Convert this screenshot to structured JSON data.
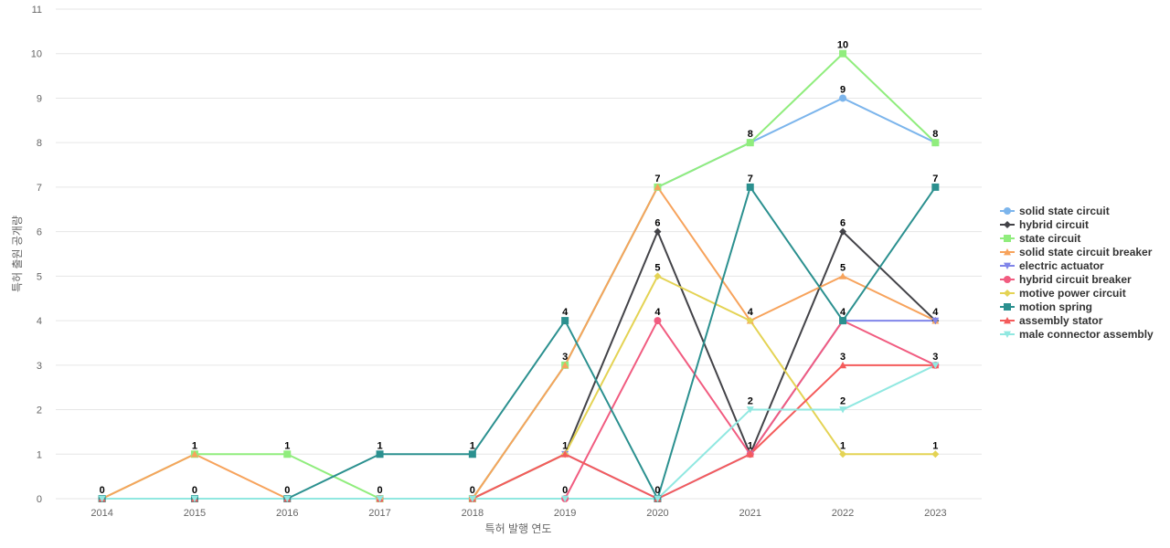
{
  "chart_data": {
    "type": "line",
    "xlabel": "특허 발행 연도",
    "ylabel": "특허 출원 공개량",
    "ylim": [
      0,
      11
    ],
    "yticks": [
      0,
      1,
      2,
      3,
      4,
      5,
      6,
      7,
      8,
      9,
      10,
      11
    ],
    "categories": [
      "2014",
      "2015",
      "2016",
      "2017",
      "2018",
      "2019",
      "2020",
      "2021",
      "2022",
      "2023"
    ],
    "grid": true,
    "legend_position": "right",
    "series": [
      {
        "name": "solid state circuit",
        "color": "#7cb5ec",
        "marker": "circle",
        "values": [
          0,
          0,
          0,
          0,
          0,
          3,
          7,
          8,
          9,
          8
        ]
      },
      {
        "name": "hybrid circuit",
        "color": "#434348",
        "marker": "diamond",
        "values": [
          0,
          0,
          0,
          0,
          0,
          1,
          6,
          1,
          6,
          4
        ]
      },
      {
        "name": "state circuit",
        "color": "#90ed7d",
        "marker": "square",
        "values": [
          0,
          1,
          1,
          0,
          0,
          3,
          7,
          8,
          10,
          8
        ]
      },
      {
        "name": "solid state circuit breaker",
        "color": "#f7a35c",
        "marker": "triangle",
        "values": [
          0,
          1,
          0,
          0,
          0,
          3,
          7,
          4,
          5,
          4
        ]
      },
      {
        "name": "electric actuator",
        "color": "#8085e9",
        "marker": "triangle-down",
        "values": [
          0,
          0,
          0,
          0,
          0,
          1,
          0,
          1,
          4,
          4
        ]
      },
      {
        "name": "hybrid circuit breaker",
        "color": "#f15c80",
        "marker": "circle",
        "values": [
          0,
          0,
          0,
          0,
          0,
          0,
          4,
          1,
          4,
          3
        ]
      },
      {
        "name": "motive power circuit",
        "color": "#e4d354",
        "marker": "diamond",
        "values": [
          0,
          0,
          0,
          0,
          0,
          1,
          5,
          4,
          1,
          1
        ]
      },
      {
        "name": "motion spring",
        "color": "#2b908f",
        "marker": "square",
        "values": [
          0,
          0,
          0,
          1,
          1,
          4,
          0,
          7,
          4,
          7
        ]
      },
      {
        "name": "assembly stator",
        "color": "#f45b5b",
        "marker": "triangle",
        "values": [
          0,
          0,
          0,
          0,
          0,
          1,
          0,
          1,
          3,
          3
        ]
      },
      {
        "name": "male connector assembly",
        "color": "#91e8e1",
        "marker": "triangle-down",
        "values": [
          0,
          0,
          0,
          0,
          0,
          0,
          0,
          2,
          2,
          3
        ]
      }
    ],
    "data_labels": [
      {
        "x": "2014",
        "value": 0
      },
      {
        "x": "2015",
        "value": 1
      },
      {
        "x": "2015",
        "value": 0
      },
      {
        "x": "2016",
        "value": 1
      },
      {
        "x": "2016",
        "value": 0
      },
      {
        "x": "2017",
        "value": 1
      },
      {
        "x": "2017",
        "value": 0
      },
      {
        "x": "2018",
        "value": 1
      },
      {
        "x": "2018",
        "value": 0
      },
      {
        "x": "2019",
        "value": 4
      },
      {
        "x": "2019",
        "value": 3
      },
      {
        "x": "2019",
        "value": 1
      },
      {
        "x": "2019",
        "value": 0
      },
      {
        "x": "2020",
        "value": 7
      },
      {
        "x": "2020",
        "value": 6
      },
      {
        "x": "2020",
        "value": 5
      },
      {
        "x": "2020",
        "value": 4
      },
      {
        "x": "2020",
        "value": 0
      },
      {
        "x": "2021",
        "value": 8
      },
      {
        "x": "2021",
        "value": 7
      },
      {
        "x": "2021",
        "value": 4
      },
      {
        "x": "2021",
        "value": 2
      },
      {
        "x": "2021",
        "value": 1
      },
      {
        "x": "2022",
        "value": 10
      },
      {
        "x": "2022",
        "value": 9
      },
      {
        "x": "2022",
        "value": 6
      },
      {
        "x": "2022",
        "value": 5
      },
      {
        "x": "2022",
        "value": 4
      },
      {
        "x": "2022",
        "value": 3
      },
      {
        "x": "2022",
        "value": 2
      },
      {
        "x": "2022",
        "value": 1
      },
      {
        "x": "2023",
        "value": 8
      },
      {
        "x": "2023",
        "value": 7
      },
      {
        "x": "2023",
        "value": 4
      },
      {
        "x": "2023",
        "value": 3
      },
      {
        "x": "2023",
        "value": 1
      }
    ]
  }
}
